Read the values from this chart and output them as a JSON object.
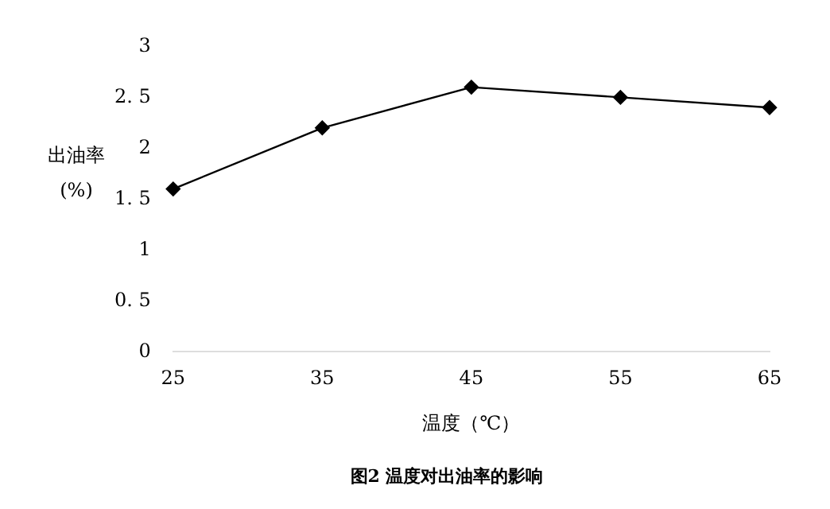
{
  "chart_data": {
    "type": "line",
    "categories": [
      "25",
      "35",
      "45",
      "55",
      "65"
    ],
    "series": [
      {
        "color": "#000000",
        "values": [
          1.6,
          2.2,
          2.6,
          2.5,
          2.4
        ]
      }
    ],
    "ylim": [
      0,
      3
    ],
    "yticks": [
      0,
      {
        "value": 0.5,
        "label": "0. 5"
      },
      1,
      {
        "value": 1.5,
        "label": "1. 5"
      },
      2,
      {
        "value": 2.5,
        "label": "2. 5"
      },
      3
    ],
    "xlabel": "温度（℃）",
    "ylabel": "出油率\n(%)",
    "annotations": [
      "图2 温度对出油率的影响"
    ],
    "marker": "diamond",
    "line_style": "solid",
    "grid": false,
    "legend": false
  }
}
